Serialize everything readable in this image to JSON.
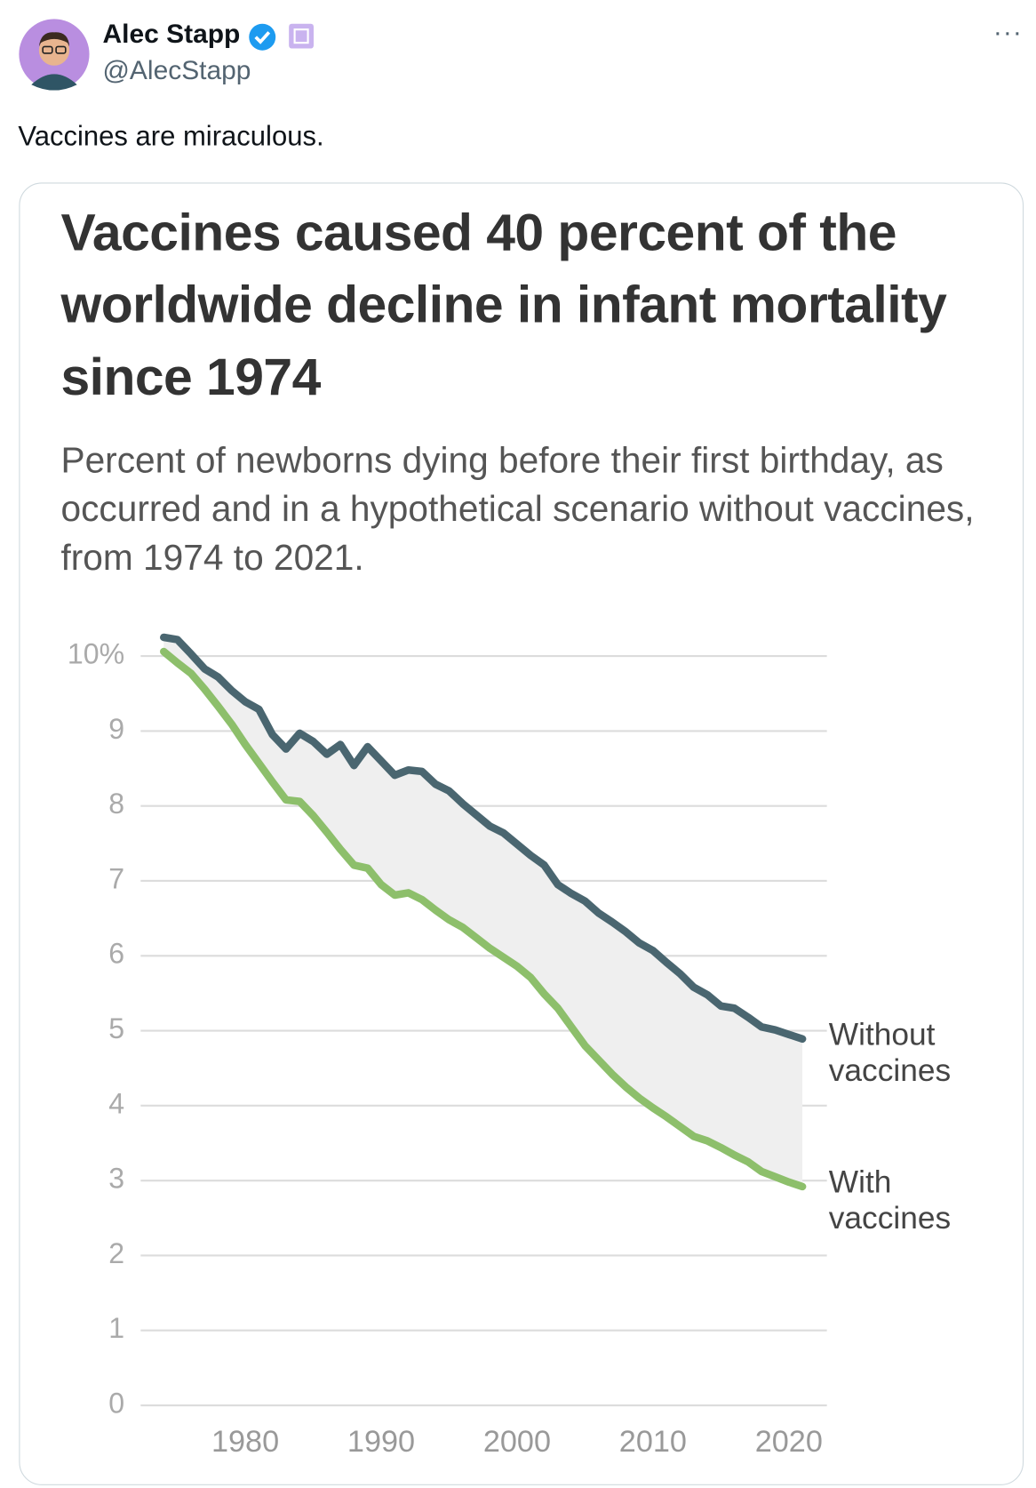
{
  "tweet": {
    "author": "Alec Stapp",
    "handle": "@AlecStapp",
    "text": "Vaccines are miraculous."
  },
  "chart_data": {
    "type": "line",
    "title": "Vaccines caused 40 percent of the worldwide decline in infant mortality since 1974",
    "subtitle": "Percent of newborns dying before their first birthday, as occurred and in a hypothetical scenario without vaccines, from 1974 to 2021.",
    "x": [
      1974,
      1975,
      1976,
      1977,
      1978,
      1979,
      1980,
      1981,
      1982,
      1983,
      1984,
      1985,
      1986,
      1987,
      1988,
      1989,
      1990,
      1991,
      1992,
      1993,
      1994,
      1995,
      1996,
      1997,
      1998,
      1999,
      2000,
      2001,
      2002,
      2003,
      2004,
      2005,
      2006,
      2007,
      2008,
      2009,
      2010,
      2011,
      2012,
      2013,
      2014,
      2015,
      2016,
      2017,
      2018,
      2019,
      2020,
      2021
    ],
    "series": [
      {
        "name": "Without vaccines",
        "color": "#4a6670",
        "values": [
          10.25,
          10.22,
          10.03,
          9.83,
          9.72,
          9.54,
          9.39,
          9.29,
          8.95,
          8.76,
          8.97,
          8.86,
          8.69,
          8.82,
          8.54,
          8.79,
          8.6,
          8.41,
          8.48,
          8.46,
          8.29,
          8.2,
          8.03,
          7.88,
          7.73,
          7.64,
          7.49,
          7.34,
          7.21,
          6.95,
          6.83,
          6.73,
          6.57,
          6.45,
          6.32,
          6.17,
          6.07,
          5.91,
          5.76,
          5.58,
          5.48,
          5.33,
          5.3,
          5.18,
          5.05,
          5.01,
          4.95,
          4.89
        ]
      },
      {
        "name": "With vaccines",
        "color": "#8dbf6b",
        "values": [
          10.06,
          9.91,
          9.77,
          9.56,
          9.33,
          9.09,
          8.82,
          8.57,
          8.32,
          8.08,
          8.06,
          7.87,
          7.65,
          7.42,
          7.21,
          7.17,
          6.95,
          6.81,
          6.84,
          6.75,
          6.61,
          6.48,
          6.38,
          6.24,
          6.1,
          5.98,
          5.86,
          5.71,
          5.49,
          5.3,
          5.05,
          4.8,
          4.61,
          4.42,
          4.25,
          4.1,
          3.97,
          3.85,
          3.72,
          3.59,
          3.53,
          3.44,
          3.34,
          3.25,
          3.12,
          3.05,
          2.98,
          2.92
        ]
      }
    ],
    "xlim": [
      1972.3,
      2022.8
    ],
    "xticks": [
      1980,
      1990,
      2000,
      2010,
      2020
    ],
    "ylim": [
      0,
      10
    ],
    "yticks": [
      0,
      1,
      2,
      3,
      4,
      5,
      6,
      7,
      8,
      9,
      {
        "value": 10,
        "label": "10%"
      }
    ],
    "grid": true,
    "fill_between": "#efefef"
  }
}
